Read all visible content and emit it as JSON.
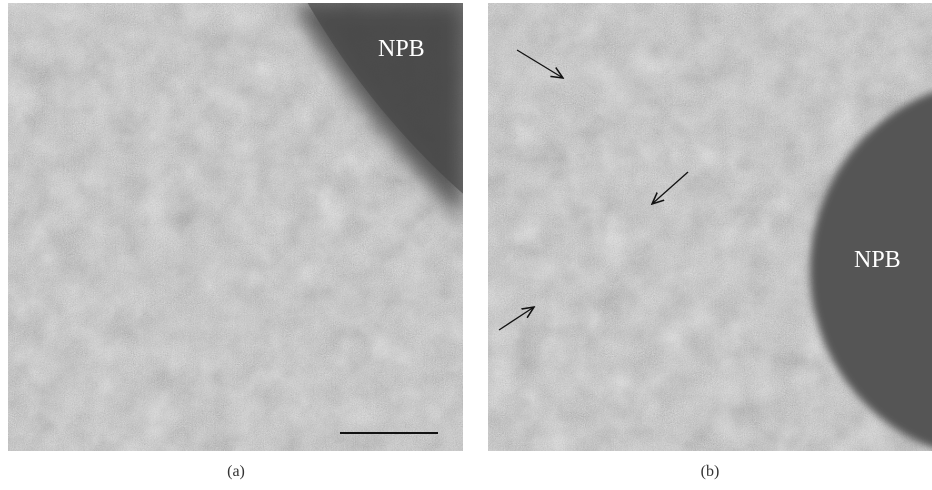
{
  "panels": [
    {
      "label": "NPB",
      "caption": "(a)"
    },
    {
      "label": "NPB",
      "caption": "(b)"
    }
  ]
}
